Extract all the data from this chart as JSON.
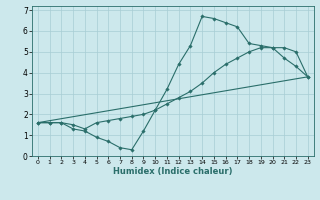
{
  "xlabel": "Humidex (Indice chaleur)",
  "bg_color": "#cce8ec",
  "line_color": "#2a6e6a",
  "grid_color": "#a8cdd4",
  "xlim": [
    -0.5,
    23.5
  ],
  "ylim": [
    0,
    7.2
  ],
  "xticks": [
    0,
    1,
    2,
    3,
    4,
    5,
    6,
    7,
    8,
    9,
    10,
    11,
    12,
    13,
    14,
    15,
    16,
    17,
    18,
    19,
    20,
    21,
    22,
    23
  ],
  "yticks": [
    0,
    1,
    2,
    3,
    4,
    5,
    6,
    7
  ],
  "line1_x": [
    0,
    1,
    2,
    3,
    4,
    5,
    6,
    7,
    8,
    9,
    10,
    11,
    12,
    13,
    14,
    15,
    16,
    17,
    18,
    19,
    20,
    21,
    22,
    23
  ],
  "line1_y": [
    1.6,
    1.6,
    1.6,
    1.5,
    1.3,
    1.6,
    1.7,
    1.8,
    1.9,
    2.0,
    2.2,
    2.5,
    2.8,
    3.1,
    3.5,
    4.0,
    4.4,
    4.7,
    5.0,
    5.2,
    5.2,
    5.2,
    5.0,
    3.8
  ],
  "line2_x": [
    0,
    1,
    2,
    3,
    4,
    5,
    6,
    7,
    8,
    9,
    10,
    11,
    12,
    13,
    14,
    15,
    16,
    17,
    18,
    19,
    20,
    21,
    22,
    23
  ],
  "line2_y": [
    1.6,
    1.6,
    1.6,
    1.3,
    1.2,
    0.9,
    0.7,
    0.4,
    0.3,
    1.2,
    2.2,
    3.2,
    4.4,
    5.3,
    6.7,
    6.6,
    6.4,
    6.2,
    5.4,
    5.3,
    5.2,
    4.7,
    4.3,
    3.8
  ],
  "line3_x": [
    0,
    23
  ],
  "line3_y": [
    1.6,
    3.8
  ]
}
